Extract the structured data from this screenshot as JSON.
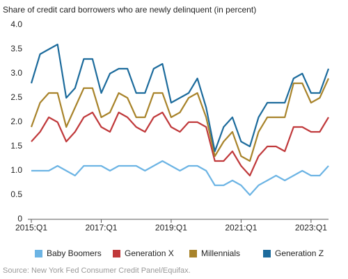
{
  "chart_data": {
    "type": "line",
    "title": "Share of credit card borrowers who are newly delinquent (in percent)",
    "categories": [
      "2015:Q1",
      null,
      null,
      null,
      null,
      null,
      null,
      null,
      "2017:Q1",
      null,
      null,
      null,
      null,
      null,
      null,
      null,
      "2019:Q1",
      null,
      null,
      null,
      null,
      null,
      null,
      null,
      "2021:Q1",
      null,
      null,
      null,
      null,
      null,
      null,
      null,
      "2023:Q1",
      null,
      null
    ],
    "series": [
      {
        "name": "Baby Boomers",
        "color": "#6cb4e4",
        "values": [
          1.0,
          1.0,
          1.0,
          1.1,
          1.0,
          0.9,
          1.1,
          1.1,
          1.1,
          1.0,
          1.1,
          1.1,
          1.1,
          1.0,
          1.1,
          1.2,
          1.1,
          1.0,
          1.1,
          1.1,
          1.0,
          0.7,
          0.7,
          0.8,
          0.7,
          0.5,
          0.7,
          0.8,
          0.9,
          0.8,
          0.9,
          1.0,
          0.9,
          0.9,
          1.1
        ]
      },
      {
        "name": "Generation X",
        "color": "#c0393b",
        "values": [
          1.6,
          1.8,
          2.1,
          2.0,
          1.6,
          1.8,
          2.1,
          2.2,
          1.9,
          1.8,
          2.2,
          2.1,
          1.9,
          1.8,
          2.1,
          2.2,
          1.9,
          1.8,
          2.0,
          2.0,
          1.9,
          1.2,
          1.2,
          1.4,
          1.1,
          0.9,
          1.3,
          1.5,
          1.5,
          1.4,
          1.9,
          1.9,
          1.8,
          1.8,
          2.1
        ]
      },
      {
        "name": "Millennials",
        "color": "#a8832a",
        "values": [
          1.9,
          2.4,
          2.6,
          2.6,
          1.9,
          2.3,
          2.7,
          2.7,
          2.1,
          2.2,
          2.6,
          2.5,
          2.1,
          2.1,
          2.6,
          2.6,
          2.1,
          2.2,
          2.5,
          2.6,
          2.1,
          1.3,
          1.6,
          1.8,
          1.3,
          1.2,
          1.8,
          2.1,
          2.1,
          2.1,
          2.8,
          2.8,
          2.4,
          2.5,
          2.9
        ]
      },
      {
        "name": "Generation Z",
        "color": "#1c6b9c",
        "values": [
          2.8,
          3.4,
          3.5,
          3.6,
          2.5,
          2.7,
          3.3,
          3.3,
          2.6,
          3.0,
          3.1,
          3.1,
          2.6,
          2.6,
          3.1,
          3.2,
          2.4,
          2.5,
          2.6,
          2.9,
          2.3,
          1.4,
          1.9,
          2.1,
          1.6,
          1.5,
          2.1,
          2.4,
          2.4,
          2.4,
          2.9,
          3.0,
          2.6,
          2.6,
          3.1
        ]
      }
    ],
    "ylim": [
      0,
      4
    ],
    "yticks": [
      0,
      0.5,
      {
        "value": 1,
        "label": "1.0"
      },
      1.5,
      {
        "value": 2,
        "label": "2.0"
      },
      2.5,
      {
        "value": 3,
        "label": "3.0"
      },
      3.5,
      {
        "value": 4,
        "label": "4.0"
      }
    ],
    "grid": false,
    "source": "Source: New York Fed Consumer Credit Panel/Equifax."
  }
}
